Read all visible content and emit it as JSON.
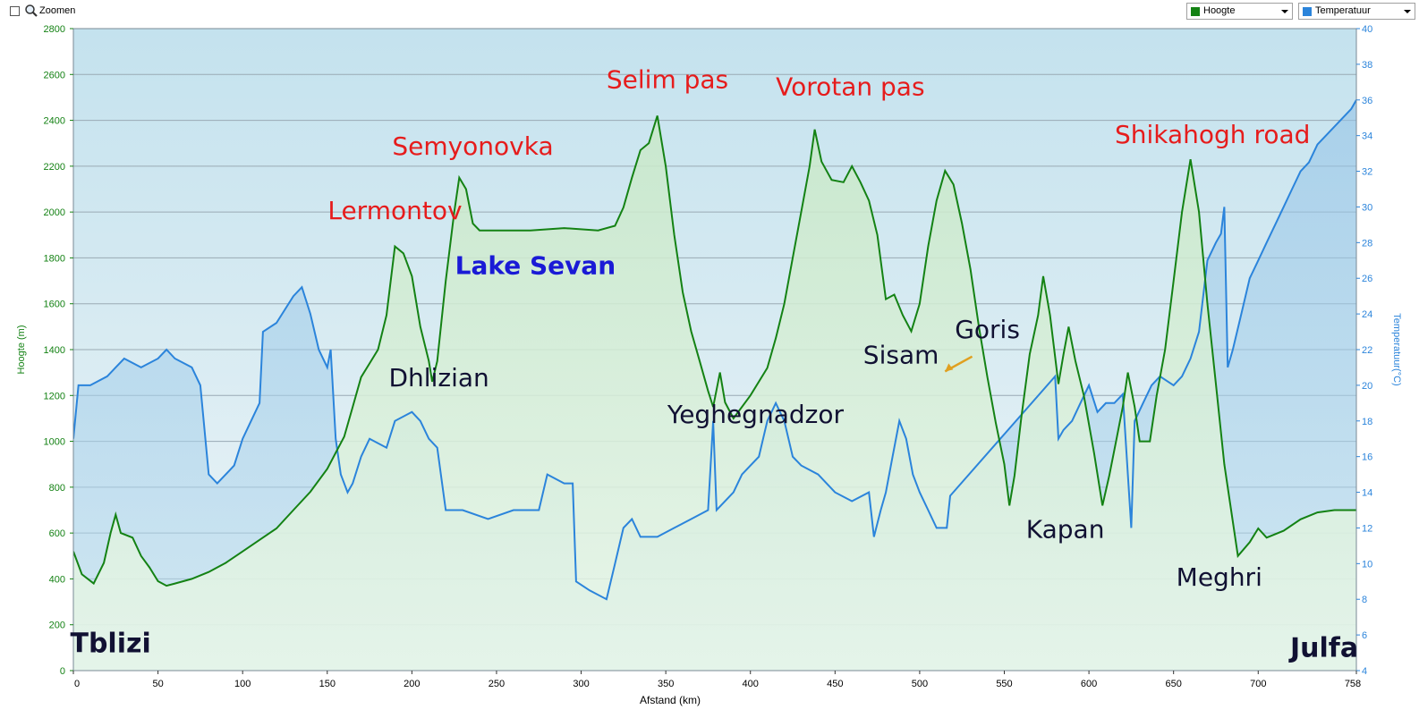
{
  "toolbar": {
    "zoom_label": "Zoomen",
    "series_select_1": "Hoogte",
    "series_select_2": "Temperatuur"
  },
  "colors": {
    "elevation": "#148214",
    "temperature": "#2b84db",
    "label_red": "#e61c1c",
    "label_blue": "#1a1ad6",
    "label_dark": "#111133",
    "arrow": "#e0a020"
  },
  "chart_data": {
    "type": "line",
    "xlabel": "Afstand  (km)",
    "ylabel_left": "Hoogte (m)",
    "ylabel_right": "Temperatuur(°C)",
    "xlim": [
      0,
      758
    ],
    "ylim_left": [
      0,
      2800
    ],
    "ylim_right": [
      4,
      40
    ],
    "x_ticks": [
      "0",
      "50",
      "100",
      "150",
      "200",
      "250",
      "300",
      "350",
      "400",
      "450",
      "500",
      "550",
      "600",
      "650",
      "700",
      "758"
    ],
    "y_left_ticks": [
      "0",
      "200",
      "400",
      "600",
      "800",
      "1000",
      "1200",
      "1400",
      "1600",
      "1800",
      "2000",
      "2200",
      "2400",
      "2600",
      "2800"
    ],
    "y_right_ticks": [
      "4",
      "6",
      "8",
      "10",
      "12",
      "14",
      "16",
      "18",
      "20",
      "22",
      "24",
      "26",
      "28",
      "30",
      "32",
      "34",
      "36",
      "38",
      "40"
    ],
    "grid": true,
    "series": [
      {
        "name": "Hoogte",
        "axis": "left",
        "points": [
          [
            0,
            520
          ],
          [
            5,
            420
          ],
          [
            12,
            380
          ],
          [
            18,
            470
          ],
          [
            22,
            600
          ],
          [
            25,
            680
          ],
          [
            28,
            600
          ],
          [
            35,
            580
          ],
          [
            40,
            500
          ],
          [
            45,
            450
          ],
          [
            50,
            390
          ],
          [
            55,
            370
          ],
          [
            60,
            380
          ],
          [
            70,
            400
          ],
          [
            80,
            430
          ],
          [
            90,
            470
          ],
          [
            100,
            520
          ],
          [
            110,
            570
          ],
          [
            120,
            620
          ],
          [
            130,
            700
          ],
          [
            140,
            780
          ],
          [
            150,
            880
          ],
          [
            155,
            950
          ],
          [
            160,
            1020
          ],
          [
            165,
            1150
          ],
          [
            170,
            1280
          ],
          [
            175,
            1340
          ],
          [
            180,
            1400
          ],
          [
            185,
            1550
          ],
          [
            190,
            1850
          ],
          [
            195,
            1820
          ],
          [
            200,
            1720
          ],
          [
            205,
            1500
          ],
          [
            210,
            1350
          ],
          [
            212,
            1260
          ],
          [
            215,
            1350
          ],
          [
            220,
            1700
          ],
          [
            225,
            2000
          ],
          [
            228,
            2150
          ],
          [
            232,
            2100
          ],
          [
            236,
            1950
          ],
          [
            240,
            1920
          ],
          [
            250,
            1920
          ],
          [
            270,
            1920
          ],
          [
            290,
            1930
          ],
          [
            310,
            1920
          ],
          [
            320,
            1940
          ],
          [
            325,
            2020
          ],
          [
            330,
            2150
          ],
          [
            335,
            2270
          ],
          [
            340,
            2300
          ],
          [
            345,
            2420
          ],
          [
            350,
            2200
          ],
          [
            355,
            1900
          ],
          [
            360,
            1650
          ],
          [
            365,
            1480
          ],
          [
            370,
            1350
          ],
          [
            375,
            1220
          ],
          [
            378,
            1150
          ],
          [
            382,
            1300
          ],
          [
            385,
            1170
          ],
          [
            390,
            1100
          ],
          [
            400,
            1200
          ],
          [
            410,
            1320
          ],
          [
            415,
            1450
          ],
          [
            420,
            1600
          ],
          [
            425,
            1800
          ],
          [
            430,
            2000
          ],
          [
            435,
            2200
          ],
          [
            438,
            2360
          ],
          [
            442,
            2220
          ],
          [
            448,
            2140
          ],
          [
            455,
            2130
          ],
          [
            460,
            2200
          ],
          [
            465,
            2130
          ],
          [
            470,
            2050
          ],
          [
            475,
            1900
          ],
          [
            480,
            1620
          ],
          [
            485,
            1640
          ],
          [
            490,
            1550
          ],
          [
            495,
            1480
          ],
          [
            500,
            1600
          ],
          [
            505,
            1850
          ],
          [
            510,
            2050
          ],
          [
            515,
            2180
          ],
          [
            520,
            2120
          ],
          [
            525,
            1950
          ],
          [
            530,
            1750
          ],
          [
            535,
            1500
          ],
          [
            540,
            1280
          ],
          [
            545,
            1080
          ],
          [
            550,
            900
          ],
          [
            553,
            720
          ],
          [
            556,
            850
          ],
          [
            560,
            1100
          ],
          [
            565,
            1380
          ],
          [
            570,
            1550
          ],
          [
            573,
            1720
          ],
          [
            577,
            1550
          ],
          [
            582,
            1250
          ],
          [
            585,
            1380
          ],
          [
            588,
            1500
          ],
          [
            592,
            1350
          ],
          [
            597,
            1200
          ],
          [
            603,
            950
          ],
          [
            608,
            720
          ],
          [
            612,
            850
          ],
          [
            616,
            1000
          ],
          [
            620,
            1150
          ],
          [
            623,
            1300
          ],
          [
            627,
            1150
          ],
          [
            630,
            1000
          ],
          [
            636,
            1000
          ],
          [
            640,
            1200
          ],
          [
            645,
            1400
          ],
          [
            650,
            1700
          ],
          [
            655,
            2000
          ],
          [
            660,
            2230
          ],
          [
            665,
            2000
          ],
          [
            670,
            1600
          ],
          [
            675,
            1250
          ],
          [
            680,
            900
          ],
          [
            685,
            650
          ],
          [
            688,
            500
          ],
          [
            695,
            560
          ],
          [
            700,
            620
          ],
          [
            705,
            580
          ],
          [
            715,
            610
          ],
          [
            725,
            660
          ],
          [
            735,
            690
          ],
          [
            745,
            700
          ],
          [
            758,
            700
          ]
        ]
      },
      {
        "name": "Temperatuur",
        "axis": "right",
        "points": [
          [
            0,
            17
          ],
          [
            3,
            20
          ],
          [
            10,
            20
          ],
          [
            20,
            20.5
          ],
          [
            30,
            21.5
          ],
          [
            40,
            21
          ],
          [
            50,
            21.5
          ],
          [
            55,
            22
          ],
          [
            60,
            21.5
          ],
          [
            70,
            21
          ],
          [
            75,
            20
          ],
          [
            80,
            15
          ],
          [
            85,
            14.5
          ],
          [
            90,
            15
          ],
          [
            95,
            15.5
          ],
          [
            100,
            17
          ],
          [
            105,
            18
          ],
          [
            110,
            19
          ],
          [
            112,
            23
          ],
          [
            120,
            23.5
          ],
          [
            130,
            25
          ],
          [
            135,
            25.5
          ],
          [
            140,
            24
          ],
          [
            145,
            22
          ],
          [
            150,
            21
          ],
          [
            152,
            22
          ],
          [
            155,
            17
          ],
          [
            158,
            15
          ],
          [
            162,
            14
          ],
          [
            165,
            14.5
          ],
          [
            170,
            16
          ],
          [
            175,
            17
          ],
          [
            185,
            16.5
          ],
          [
            190,
            18
          ],
          [
            200,
            18.5
          ],
          [
            205,
            18
          ],
          [
            210,
            17
          ],
          [
            215,
            16.5
          ],
          [
            220,
            13
          ],
          [
            230,
            13
          ],
          [
            245,
            12.5
          ],
          [
            260,
            13
          ],
          [
            275,
            13
          ],
          [
            280,
            15
          ],
          [
            290,
            14.5
          ],
          [
            295,
            14.5
          ],
          [
            297,
            9
          ],
          [
            305,
            8.5
          ],
          [
            315,
            8
          ],
          [
            320,
            10
          ],
          [
            325,
            12
          ],
          [
            330,
            12.5
          ],
          [
            335,
            11.5
          ],
          [
            345,
            11.5
          ],
          [
            355,
            12
          ],
          [
            365,
            12.5
          ],
          [
            375,
            13
          ],
          [
            378,
            18
          ],
          [
            380,
            13
          ],
          [
            390,
            14
          ],
          [
            395,
            15
          ],
          [
            405,
            16
          ],
          [
            410,
            18
          ],
          [
            415,
            19
          ],
          [
            420,
            18
          ],
          [
            425,
            16
          ],
          [
            430,
            15.5
          ],
          [
            440,
            15
          ],
          [
            450,
            14
          ],
          [
            460,
            13.5
          ],
          [
            470,
            14
          ],
          [
            473,
            11.5
          ],
          [
            477,
            13
          ],
          [
            480,
            14
          ],
          [
            484,
            16
          ],
          [
            488,
            18
          ],
          [
            492,
            17
          ],
          [
            496,
            15
          ],
          [
            500,
            14
          ],
          [
            505,
            13
          ],
          [
            510,
            12
          ],
          [
            516,
            12
          ],
          [
            518,
            13.8
          ],
          [
            580,
            20.5
          ],
          [
            582,
            17
          ],
          [
            585,
            17.5
          ],
          [
            590,
            18
          ],
          [
            595,
            19
          ],
          [
            600,
            20
          ],
          [
            605,
            18.5
          ],
          [
            610,
            19
          ],
          [
            615,
            19
          ],
          [
            620,
            19.5
          ],
          [
            625,
            12
          ],
          [
            627,
            18
          ],
          [
            632,
            19
          ],
          [
            637,
            20
          ],
          [
            642,
            20.5
          ],
          [
            650,
            20
          ],
          [
            655,
            20.5
          ],
          [
            660,
            21.5
          ],
          [
            665,
            23
          ],
          [
            670,
            27
          ],
          [
            675,
            28
          ],
          [
            678,
            28.5
          ],
          [
            680,
            30
          ],
          [
            682,
            21
          ],
          [
            685,
            22
          ],
          [
            690,
            24
          ],
          [
            695,
            26
          ],
          [
            700,
            27
          ],
          [
            705,
            28
          ],
          [
            710,
            29
          ],
          [
            715,
            30
          ],
          [
            720,
            31
          ],
          [
            725,
            32
          ],
          [
            730,
            32.5
          ],
          [
            735,
            33.5
          ],
          [
            740,
            34
          ],
          [
            745,
            34.5
          ],
          [
            750,
            35
          ],
          [
            755,
            35.5
          ],
          [
            758,
            36
          ]
        ]
      }
    ],
    "annotations": [
      {
        "text": "Lermontov",
        "x": 190,
        "y_left": 1970,
        "color": "red",
        "size": 28
      },
      {
        "text": "Semyonovka",
        "x": 236,
        "y_left": 2250,
        "color": "red",
        "size": 28
      },
      {
        "text": "Selim pas",
        "x": 351,
        "y_left": 2540,
        "color": "red",
        "size": 28
      },
      {
        "text": "Vorotan pas",
        "x": 459,
        "y_left": 2510,
        "color": "red",
        "size": 28
      },
      {
        "text": "Shikahogh  road",
        "x": 673,
        "y_left": 2300,
        "color": "red",
        "size": 28
      },
      {
        "text": "Lake Sevan",
        "x": 273,
        "y_left": 1730,
        "color": "blue",
        "size": 28
      },
      {
        "text": "Dhlizian",
        "x": 216,
        "y_left": 1240,
        "color": "dark",
        "size": 28
      },
      {
        "text": "Yeghegnadzor",
        "x": 403,
        "y_left": 1080,
        "color": "dark",
        "size": 28
      },
      {
        "text": "Goris",
        "x": 540,
        "y_left": 1450,
        "color": "dark",
        "size": 28
      },
      {
        "text": "Sisam",
        "x": 489,
        "y_left": 1340,
        "color": "dark",
        "size": 28
      },
      {
        "text": "Kapan",
        "x": 586,
        "y_left": 580,
        "color": "dark",
        "size": 28
      },
      {
        "text": "Meghri",
        "x": 677,
        "y_left": 370,
        "color": "dark",
        "size": 28
      },
      {
        "text": "Tblizi",
        "x": 22,
        "y_left": 80,
        "color": "dark",
        "size": 30,
        "bold": true
      },
      {
        "text": "Julfa",
        "x": 739,
        "y_left": 60,
        "color": "dark",
        "size": 30,
        "bold": true
      }
    ],
    "legend": "top-right"
  }
}
